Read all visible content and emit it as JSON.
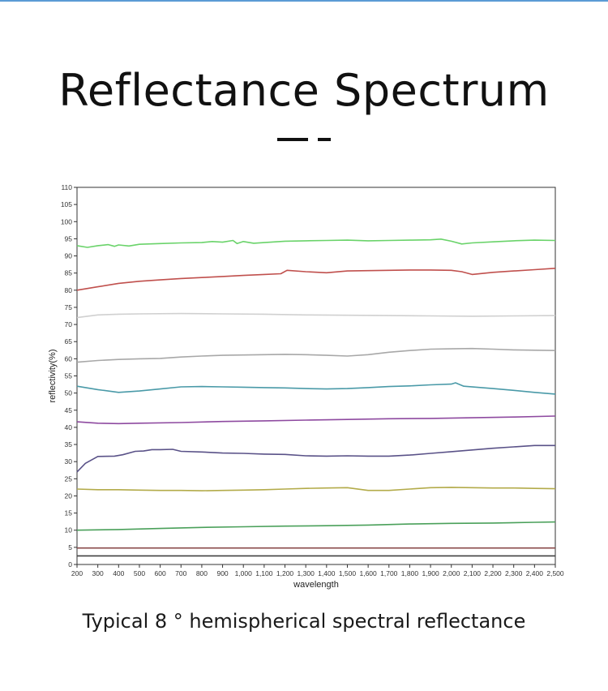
{
  "header": {
    "title": "Reflectance Spectrum"
  },
  "caption": "Typical 8 ° hemispherical spectral reflectance",
  "colors": {
    "accent_rule": "#5b9bd5",
    "title": "#111111",
    "axis": "#333333"
  },
  "chart_data": {
    "type": "line",
    "xlabel": "wavelength",
    "ylabel": "reflectivity(%)",
    "xlim": [
      200,
      2500
    ],
    "ylim": [
      0,
      110
    ],
    "x_ticks": [
      200,
      300,
      400,
      500,
      600,
      700,
      800,
      900,
      1000,
      1100,
      1200,
      1300,
      1400,
      1500,
      1600,
      1700,
      1800,
      1900,
      2000,
      2100,
      2200,
      2300,
      2400,
      2500
    ],
    "x_tick_labels": [
      "200",
      "300",
      "400",
      "500",
      "600",
      "700",
      "800",
      "900",
      "1,000",
      "1,100",
      "1,200",
      "1,300",
      "1,400",
      "1,500",
      "1,600",
      "1,700",
      "1,800",
      "1,900",
      "2,000",
      "2,100",
      "2,200",
      "2,300",
      "2,400",
      "2,500"
    ],
    "y_ticks": [
      0,
      5,
      10,
      15,
      20,
      25,
      30,
      35,
      40,
      45,
      50,
      55,
      60,
      65,
      70,
      75,
      80,
      85,
      90,
      95,
      100,
      105,
      110
    ],
    "grid": false,
    "legend": "none",
    "series": [
      {
        "color": "#6ad36a",
        "points": [
          [
            200,
            93.0
          ],
          [
            250,
            92.5
          ],
          [
            300,
            93.0
          ],
          [
            350,
            93.3
          ],
          [
            380,
            92.8
          ],
          [
            400,
            93.2
          ],
          [
            450,
            92.9
          ],
          [
            500,
            93.4
          ],
          [
            600,
            93.6
          ],
          [
            700,
            93.8
          ],
          [
            800,
            93.9
          ],
          [
            850,
            94.2
          ],
          [
            900,
            94.0
          ],
          [
            950,
            94.5
          ],
          [
            970,
            93.6
          ],
          [
            1000,
            94.2
          ],
          [
            1050,
            93.7
          ],
          [
            1100,
            93.9
          ],
          [
            1200,
            94.3
          ],
          [
            1300,
            94.4
          ],
          [
            1400,
            94.5
          ],
          [
            1500,
            94.6
          ],
          [
            1600,
            94.4
          ],
          [
            1700,
            94.5
          ],
          [
            1800,
            94.6
          ],
          [
            1900,
            94.7
          ],
          [
            1950,
            94.9
          ],
          [
            2000,
            94.3
          ],
          [
            2050,
            93.5
          ],
          [
            2100,
            93.8
          ],
          [
            2200,
            94.1
          ],
          [
            2300,
            94.4
          ],
          [
            2400,
            94.6
          ],
          [
            2500,
            94.5
          ]
        ]
      },
      {
        "color": "#c0504d",
        "points": [
          [
            200,
            80.0
          ],
          [
            300,
            81.0
          ],
          [
            400,
            82.0
          ],
          [
            500,
            82.6
          ],
          [
            600,
            83.0
          ],
          [
            700,
            83.4
          ],
          [
            800,
            83.7
          ],
          [
            900,
            84.0
          ],
          [
            1000,
            84.3
          ],
          [
            1100,
            84.6
          ],
          [
            1180,
            84.8
          ],
          [
            1210,
            85.8
          ],
          [
            1300,
            85.4
          ],
          [
            1400,
            85.1
          ],
          [
            1500,
            85.6
          ],
          [
            1600,
            85.7
          ],
          [
            1700,
            85.8
          ],
          [
            1800,
            85.9
          ],
          [
            1900,
            85.9
          ],
          [
            2000,
            85.8
          ],
          [
            2050,
            85.4
          ],
          [
            2100,
            84.6
          ],
          [
            2200,
            85.2
          ],
          [
            2300,
            85.6
          ],
          [
            2400,
            86.0
          ],
          [
            2500,
            86.4
          ]
        ]
      },
      {
        "color": "#d0d0d0",
        "points": [
          [
            200,
            72.0
          ],
          [
            300,
            72.8
          ],
          [
            400,
            73.0
          ],
          [
            500,
            73.1
          ],
          [
            700,
            73.2
          ],
          [
            900,
            73.1
          ],
          [
            1100,
            73.0
          ],
          [
            1300,
            72.8
          ],
          [
            1500,
            72.7
          ],
          [
            1700,
            72.6
          ],
          [
            1900,
            72.5
          ],
          [
            2100,
            72.4
          ],
          [
            2300,
            72.5
          ],
          [
            2500,
            72.6
          ]
        ]
      },
      {
        "color": "#a8a8a8",
        "points": [
          [
            200,
            59.0
          ],
          [
            300,
            59.5
          ],
          [
            400,
            59.8
          ],
          [
            500,
            60.0
          ],
          [
            600,
            60.1
          ],
          [
            700,
            60.5
          ],
          [
            800,
            60.8
          ],
          [
            900,
            61.0
          ],
          [
            1000,
            61.1
          ],
          [
            1100,
            61.2
          ],
          [
            1200,
            61.3
          ],
          [
            1300,
            61.2
          ],
          [
            1400,
            61.0
          ],
          [
            1500,
            60.8
          ],
          [
            1600,
            61.2
          ],
          [
            1700,
            61.9
          ],
          [
            1800,
            62.4
          ],
          [
            1900,
            62.8
          ],
          [
            2000,
            62.9
          ],
          [
            2100,
            63.0
          ],
          [
            2200,
            62.8
          ],
          [
            2300,
            62.6
          ],
          [
            2400,
            62.5
          ],
          [
            2500,
            62.4
          ]
        ]
      },
      {
        "color": "#4a9aa8",
        "points": [
          [
            200,
            52.0
          ],
          [
            300,
            51.0
          ],
          [
            400,
            50.2
          ],
          [
            500,
            50.6
          ],
          [
            600,
            51.2
          ],
          [
            700,
            51.8
          ],
          [
            800,
            51.9
          ],
          [
            900,
            51.8
          ],
          [
            1000,
            51.7
          ],
          [
            1100,
            51.6
          ],
          [
            1200,
            51.5
          ],
          [
            1300,
            51.3
          ],
          [
            1400,
            51.2
          ],
          [
            1500,
            51.3
          ],
          [
            1600,
            51.6
          ],
          [
            1700,
            51.9
          ],
          [
            1800,
            52.1
          ],
          [
            1900,
            52.4
          ],
          [
            2000,
            52.6
          ],
          [
            2020,
            53.0
          ],
          [
            2060,
            52.0
          ],
          [
            2200,
            51.3
          ],
          [
            2300,
            50.8
          ],
          [
            2400,
            50.2
          ],
          [
            2500,
            49.7
          ]
        ]
      },
      {
        "color": "#8e4aa0",
        "points": [
          [
            200,
            41.6
          ],
          [
            300,
            41.2
          ],
          [
            400,
            41.1
          ],
          [
            500,
            41.2
          ],
          [
            700,
            41.4
          ],
          [
            900,
            41.7
          ],
          [
            1100,
            41.9
          ],
          [
            1300,
            42.1
          ],
          [
            1500,
            42.3
          ],
          [
            1700,
            42.5
          ],
          [
            1900,
            42.6
          ],
          [
            2100,
            42.8
          ],
          [
            2300,
            43.0
          ],
          [
            2500,
            43.3
          ]
        ]
      },
      {
        "color": "#5a5288",
        "points": [
          [
            200,
            27.0
          ],
          [
            240,
            29.5
          ],
          [
            300,
            31.5
          ],
          [
            380,
            31.6
          ],
          [
            420,
            32.0
          ],
          [
            480,
            33.0
          ],
          [
            520,
            33.1
          ],
          [
            560,
            33.5
          ],
          [
            600,
            33.5
          ],
          [
            660,
            33.6
          ],
          [
            700,
            33.0
          ],
          [
            800,
            32.8
          ],
          [
            900,
            32.5
          ],
          [
            1000,
            32.4
          ],
          [
            1100,
            32.2
          ],
          [
            1200,
            32.1
          ],
          [
            1300,
            31.7
          ],
          [
            1400,
            31.6
          ],
          [
            1500,
            31.7
          ],
          [
            1600,
            31.6
          ],
          [
            1700,
            31.6
          ],
          [
            1800,
            31.9
          ],
          [
            1900,
            32.4
          ],
          [
            2000,
            32.9
          ],
          [
            2100,
            33.4
          ],
          [
            2200,
            33.9
          ],
          [
            2300,
            34.3
          ],
          [
            2400,
            34.7
          ],
          [
            2500,
            34.7
          ]
        ]
      },
      {
        "color": "#b3ab4a",
        "points": [
          [
            200,
            22.0
          ],
          [
            300,
            21.8
          ],
          [
            400,
            21.8
          ],
          [
            500,
            21.7
          ],
          [
            600,
            21.6
          ],
          [
            700,
            21.6
          ],
          [
            800,
            21.5
          ],
          [
            900,
            21.6
          ],
          [
            1000,
            21.7
          ],
          [
            1100,
            21.8
          ],
          [
            1200,
            22.0
          ],
          [
            1300,
            22.2
          ],
          [
            1400,
            22.3
          ],
          [
            1500,
            22.4
          ],
          [
            1600,
            21.6
          ],
          [
            1700,
            21.6
          ],
          [
            1800,
            22.0
          ],
          [
            1900,
            22.4
          ],
          [
            2000,
            22.5
          ],
          [
            2100,
            22.4
          ],
          [
            2200,
            22.3
          ],
          [
            2300,
            22.3
          ],
          [
            2400,
            22.2
          ],
          [
            2500,
            22.1
          ]
        ]
      },
      {
        "color": "#4aa05a",
        "points": [
          [
            200,
            10.0
          ],
          [
            400,
            10.2
          ],
          [
            600,
            10.5
          ],
          [
            800,
            10.8
          ],
          [
            1000,
            11.0
          ],
          [
            1200,
            11.2
          ],
          [
            1400,
            11.3
          ],
          [
            1600,
            11.5
          ],
          [
            1800,
            11.8
          ],
          [
            2000,
            12.0
          ],
          [
            2200,
            12.1
          ],
          [
            2400,
            12.3
          ],
          [
            2500,
            12.4
          ]
        ]
      },
      {
        "color": "#8a4a4a",
        "points": [
          [
            200,
            4.8
          ],
          [
            700,
            4.8
          ],
          [
            1200,
            4.8
          ],
          [
            1700,
            4.8
          ],
          [
            2200,
            4.8
          ],
          [
            2500,
            4.8
          ]
        ]
      },
      {
        "color": "#404040",
        "points": [
          [
            200,
            2.5
          ],
          [
            700,
            2.5
          ],
          [
            1200,
            2.5
          ],
          [
            1700,
            2.5
          ],
          [
            2200,
            2.5
          ],
          [
            2500,
            2.5
          ]
        ]
      }
    ]
  }
}
